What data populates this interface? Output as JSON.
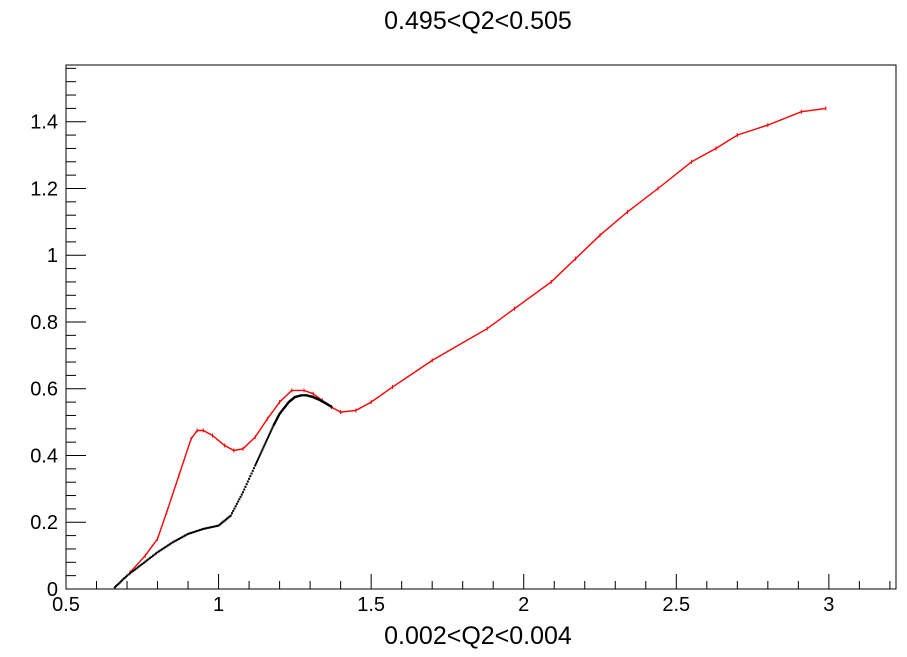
{
  "chart_data": {
    "type": "line",
    "title": "0.495<Q2<0.505",
    "xlabel": "0.002<Q2<0.004",
    "ylabel": "",
    "xlim": [
      0.5,
      3.22
    ],
    "ylim": [
      0,
      1.57
    ],
    "x_ticks": [
      {
        "value": 0.5,
        "label": "0.5"
      },
      {
        "value": 1.0,
        "label": "1"
      },
      {
        "value": 1.5,
        "label": "1.5"
      },
      {
        "value": 2.0,
        "label": "2"
      },
      {
        "value": 2.5,
        "label": "2.5"
      },
      {
        "value": 3.0,
        "label": "3"
      }
    ],
    "y_ticks": [
      {
        "value": 0,
        "label": "0"
      },
      {
        "value": 0.2,
        "label": "0.2"
      },
      {
        "value": 0.4,
        "label": "0.4"
      },
      {
        "value": 0.6,
        "label": "0.6"
      },
      {
        "value": 0.8,
        "label": "0.8"
      },
      {
        "value": 1.0,
        "label": "1"
      },
      {
        "value": 1.2,
        "label": "1.2"
      },
      {
        "value": 1.4,
        "label": "1.4"
      }
    ],
    "grid": false,
    "legend": "none",
    "series": [
      {
        "color": "#ff0000",
        "style": "line",
        "x": [
          0.71,
          0.76,
          0.8,
          0.83,
          0.87,
          0.91,
          0.93,
          0.95,
          0.98,
          1.02,
          1.05,
          1.08,
          1.12,
          1.16,
          1.2,
          1.24,
          1.28,
          1.31,
          1.34,
          1.37,
          1.4,
          1.45,
          1.5,
          1.57,
          1.7,
          1.88,
          1.97,
          2.09,
          2.17,
          2.25,
          2.34,
          2.44,
          2.55,
          2.63,
          2.7,
          2.8,
          2.91,
          2.99
        ],
        "y": [
          0.05,
          0.1,
          0.15,
          0.23,
          0.34,
          0.45,
          0.475,
          0.475,
          0.46,
          0.43,
          0.415,
          0.42,
          0.455,
          0.51,
          0.56,
          0.595,
          0.595,
          0.585,
          0.565,
          0.545,
          0.53,
          0.535,
          0.56,
          0.605,
          0.685,
          0.78,
          0.84,
          0.92,
          0.99,
          1.06,
          1.13,
          1.2,
          1.28,
          1.32,
          1.36,
          1.39,
          1.43,
          1.44
        ]
      },
      {
        "color": "#000000",
        "style": "points",
        "x": [
          0.66,
          0.7,
          0.75,
          0.8,
          0.85,
          0.9,
          0.95,
          1.0,
          1.04,
          1.08,
          1.12,
          1.15,
          1.18,
          1.2,
          1.23,
          1.25,
          1.27,
          1.29,
          1.31,
          1.33,
          1.35,
          1.37
        ],
        "y": [
          0.005,
          0.04,
          0.075,
          0.11,
          0.14,
          0.165,
          0.18,
          0.19,
          0.22,
          0.29,
          0.37,
          0.43,
          0.49,
          0.525,
          0.56,
          0.575,
          0.58,
          0.58,
          0.575,
          0.567,
          0.557,
          0.546
        ]
      }
    ]
  }
}
